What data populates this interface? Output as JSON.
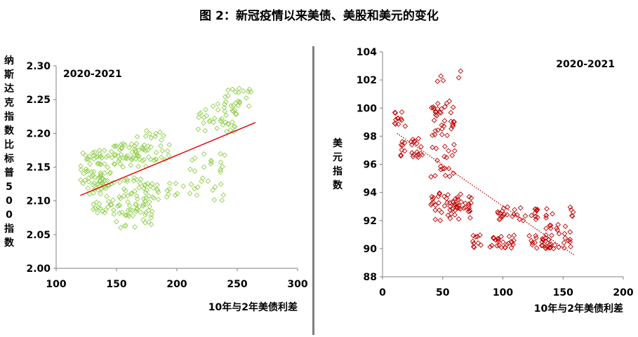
{
  "title": "图 2：新冠疫情以来美债、美股和美元的变化",
  "chart_data": [
    {
      "type": "scatter",
      "annotation": "2020-2021",
      "xlabel": "10年与2年美债利差",
      "ylabel": "纳斯达克指数比标普500指数",
      "xlim": [
        100,
        300
      ],
      "ylim": [
        2.0,
        2.3
      ],
      "xticks": [
        "100",
        "150",
        "200",
        "250",
        "300"
      ],
      "yticks": [
        "2.00",
        "2.05",
        "2.10",
        "2.15",
        "2.20",
        "2.25",
        "2.30"
      ],
      "marker_color": "#92d050",
      "trendline": {
        "x": [
          120,
          265
        ],
        "y": [
          2.108,
          2.216
        ],
        "color": "#e00000",
        "style": "solid"
      },
      "clusters": [
        {
          "x": [
            120,
            145
          ],
          "y": [
            2.11,
            2.175
          ],
          "n": 70
        },
        {
          "x": [
            145,
            175
          ],
          "y": [
            2.15,
            2.185
          ],
          "n": 50
        },
        {
          "x": [
            130,
            185
          ],
          "y": [
            2.08,
            2.135
          ],
          "n": 80
        },
        {
          "x": [
            148,
            180
          ],
          "y": [
            2.06,
            2.1
          ],
          "n": 30
        },
        {
          "x": [
            165,
            195
          ],
          "y": [
            2.16,
            2.205
          ],
          "n": 30
        },
        {
          "x": [
            175,
            205
          ],
          "y": [
            2.105,
            2.13
          ],
          "n": 12
        },
        {
          "x": [
            205,
            240
          ],
          "y": [
            2.1,
            2.17
          ],
          "n": 30
        },
        {
          "x": [
            215,
            250
          ],
          "y": [
            2.2,
            2.245
          ],
          "n": 40
        },
        {
          "x": [
            240,
            262
          ],
          "y": [
            2.24,
            2.27
          ],
          "n": 20
        }
      ]
    },
    {
      "type": "scatter",
      "annotation": "2020-2021",
      "xlabel": "10年与2年美债利差",
      "ylabel": "美元指数",
      "xlim": [
        0,
        200
      ],
      "ylim": [
        88,
        104
      ],
      "xticks": [
        "0",
        "50",
        "100",
        "150",
        "200"
      ],
      "yticks": [
        "88",
        "90",
        "92",
        "94",
        "96",
        "98",
        "100",
        "102",
        "104"
      ],
      "marker_color": "#c00000",
      "trendline": {
        "x": [
          12,
          160
        ],
        "y": [
          98.2,
          89.5
        ],
        "color": "#c00000",
        "style": "dotted"
      },
      "clusters": [
        {
          "x": [
            10,
            20
          ],
          "y": [
            98.5,
            99.8
          ],
          "n": 12
        },
        {
          "x": [
            15,
            35
          ],
          "y": [
            96.5,
            98
          ],
          "n": 25
        },
        {
          "x": [
            40,
            60
          ],
          "y": [
            98,
            100.6
          ],
          "n": 35
        },
        {
          "x": [
            45,
            75
          ],
          "y": [
            101.8,
            102.7
          ],
          "n": 5
        },
        {
          "x": [
            40,
            60
          ],
          "y": [
            95,
            97.5
          ],
          "n": 20
        },
        {
          "x": [
            40,
            75
          ],
          "y": [
            92,
            94
          ],
          "n": 60
        },
        {
          "x": [
            75,
            85
          ],
          "y": [
            90,
            91
          ],
          "n": 10
        },
        {
          "x": [
            85,
            110
          ],
          "y": [
            90,
            91
          ],
          "n": 25
        },
        {
          "x": [
            95,
            130
          ],
          "y": [
            92,
            93
          ],
          "n": 30
        },
        {
          "x": [
            120,
            145
          ],
          "y": [
            90,
            91
          ],
          "n": 25
        },
        {
          "x": [
            135,
            160
          ],
          "y": [
            90,
            93
          ],
          "n": 35
        }
      ]
    }
  ]
}
